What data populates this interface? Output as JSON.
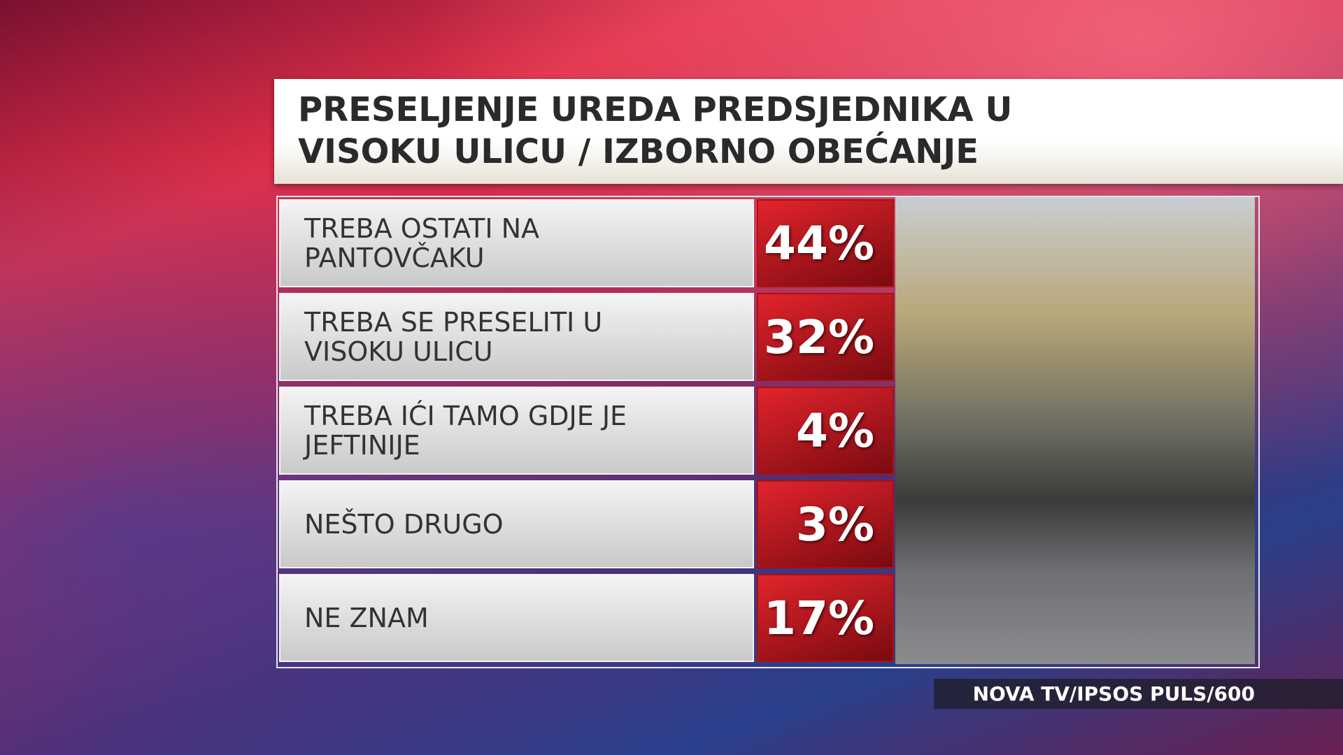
{
  "chart_data": {
    "type": "table",
    "title": "PRESELJENJE UREDA PREDSJEDNIKA U VISOKU ULICU / IZBORNO OBEĆANJE",
    "categories": [
      "TREBA OSTATI NA PANTOVČAKU",
      "TREBA SE PRESELITI U VISOKU ULICU",
      "TREBA IĆI TAMO GDJE JE JEFTINIJE",
      "NEŠTO DRUGO",
      "NE ZNAM"
    ],
    "values": [
      44,
      32,
      4,
      3,
      17
    ],
    "value_labels": [
      "44%",
      "32%",
      "4%",
      "3%",
      "17%"
    ],
    "source": "NOVA TV/IPSOS PULS/600"
  }
}
